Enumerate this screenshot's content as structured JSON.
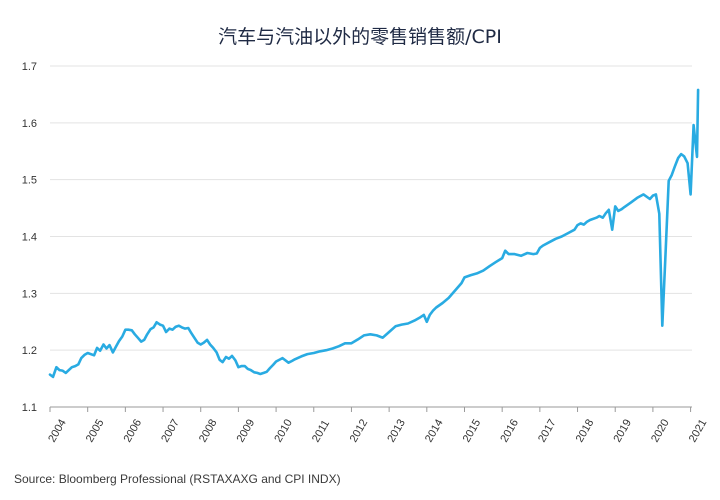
{
  "chart_data": {
    "type": "line",
    "title": "汽车与汽油以外的零售销售额/CPI",
    "xlabel": "",
    "ylabel": "",
    "ylim": [
      1.1,
      1.7
    ],
    "yticks": [
      1.1,
      1.2,
      1.3,
      1.4,
      1.5,
      1.6,
      1.7
    ],
    "xlim": [
      2004.0,
      2021.25
    ],
    "xticks": [
      "2004",
      "2005",
      "2006",
      "2007",
      "2008",
      "2009",
      "2010",
      "2011",
      "2012",
      "2013",
      "2014",
      "2015",
      "2016",
      "2017",
      "2018",
      "2019",
      "2020",
      "2021"
    ],
    "grid": "horizontal",
    "legend": "none",
    "line_color": "#29abe2",
    "series": [
      {
        "x": [
          2004.0,
          2004.08,
          2004.17,
          2004.25,
          2004.33,
          2004.42,
          2004.5,
          2004.58,
          2004.67,
          2004.75,
          2004.83,
          2004.92,
          2005.0,
          2005.17,
          2005.25,
          2005.33,
          2005.42,
          2005.5,
          2005.58,
          2005.67,
          2005.75,
          2005.83,
          2005.92,
          2006.0,
          2006.08,
          2006.17,
          2006.25,
          2006.33,
          2006.42,
          2006.5,
          2006.58,
          2006.67,
          2006.75,
          2006.83,
          2006.92,
          2007.0,
          2007.08,
          2007.17,
          2007.25,
          2007.33,
          2007.42,
          2007.5,
          2007.58,
          2007.67,
          2007.75,
          2007.83,
          2007.92,
          2008.0,
          2008.08,
          2008.17,
          2008.25,
          2008.33,
          2008.42,
          2008.5,
          2008.58,
          2008.67,
          2008.75,
          2008.83,
          2008.92,
          2009.0,
          2009.08,
          2009.17,
          2009.25,
          2009.33,
          2009.42,
          2009.5,
          2009.58,
          2009.67,
          2009.75,
          2009.83,
          2009.92,
          2010.0,
          2010.17,
          2010.33,
          2010.42,
          2010.5,
          2010.67,
          2010.83,
          2011.0,
          2011.17,
          2011.33,
          2011.5,
          2011.67,
          2011.83,
          2012.0,
          2012.17,
          2012.33,
          2012.5,
          2012.67,
          2012.83,
          2013.0,
          2013.17,
          2013.33,
          2013.5,
          2013.67,
          2013.83,
          2013.92,
          2014.0,
          2014.08,
          2014.17,
          2014.25,
          2014.42,
          2014.58,
          2014.75,
          2014.92,
          2015.0,
          2015.17,
          2015.33,
          2015.5,
          2015.67,
          2015.83,
          2016.0,
          2016.08,
          2016.17,
          2016.33,
          2016.5,
          2016.67,
          2016.83,
          2016.92,
          2017.0,
          2017.08,
          2017.25,
          2017.42,
          2017.58,
          2017.75,
          2017.92,
          2018.0,
          2018.08,
          2018.17,
          2018.25,
          2018.33,
          2018.5,
          2018.58,
          2018.67,
          2018.75,
          2018.83,
          2018.92,
          2019.0,
          2019.08,
          2019.17,
          2019.25,
          2019.42,
          2019.58,
          2019.75,
          2019.92,
          2020.0,
          2020.08,
          2020.17,
          2020.25,
          2020.33,
          2020.42,
          2020.5,
          2020.58,
          2020.67,
          2020.75,
          2020.83,
          2020.92,
          2021.0,
          2021.08,
          2021.17
        ],
        "values": [
          1.157,
          1.153,
          1.17,
          1.165,
          1.164,
          1.16,
          1.165,
          1.17,
          1.172,
          1.175,
          1.186,
          1.192,
          1.195,
          1.191,
          1.204,
          1.199,
          1.21,
          1.203,
          1.209,
          1.196,
          1.206,
          1.216,
          1.224,
          1.236,
          1.236,
          1.235,
          1.228,
          1.222,
          1.215,
          1.218,
          1.228,
          1.237,
          1.24,
          1.249,
          1.245,
          1.243,
          1.232,
          1.238,
          1.236,
          1.241,
          1.243,
          1.24,
          1.238,
          1.239,
          1.23,
          1.222,
          1.213,
          1.21,
          1.213,
          1.218,
          1.21,
          1.204,
          1.196,
          1.183,
          1.179,
          1.188,
          1.185,
          1.19,
          1.182,
          1.17,
          1.172,
          1.172,
          1.167,
          1.165,
          1.161,
          1.16,
          1.158,
          1.16,
          1.162,
          1.168,
          1.174,
          1.18,
          1.186,
          1.178,
          1.181,
          1.184,
          1.189,
          1.193,
          1.195,
          1.198,
          1.2,
          1.203,
          1.207,
          1.212,
          1.212,
          1.219,
          1.226,
          1.228,
          1.226,
          1.222,
          1.232,
          1.242,
          1.245,
          1.247,
          1.252,
          1.258,
          1.262,
          1.25,
          1.262,
          1.27,
          1.275,
          1.283,
          1.292,
          1.305,
          1.318,
          1.328,
          1.332,
          1.335,
          1.34,
          1.348,
          1.355,
          1.362,
          1.375,
          1.369,
          1.369,
          1.366,
          1.371,
          1.369,
          1.37,
          1.38,
          1.384,
          1.39,
          1.396,
          1.4,
          1.406,
          1.412,
          1.42,
          1.423,
          1.421,
          1.426,
          1.429,
          1.433,
          1.436,
          1.433,
          1.441,
          1.447,
          1.412,
          1.453,
          1.445,
          1.448,
          1.452,
          1.46,
          1.468,
          1.474,
          1.466,
          1.472,
          1.474,
          1.44,
          1.243,
          1.36,
          1.498,
          1.508,
          1.523,
          1.538,
          1.545,
          1.541,
          1.529,
          1.474,
          1.596,
          1.54
        ]
      }
    ],
    "x_end": 2021.2,
    "y_end": 1.658
  },
  "footer": {
    "source": "Source: Bloomberg Professional (RSTAXAXG and CPI INDX)"
  }
}
